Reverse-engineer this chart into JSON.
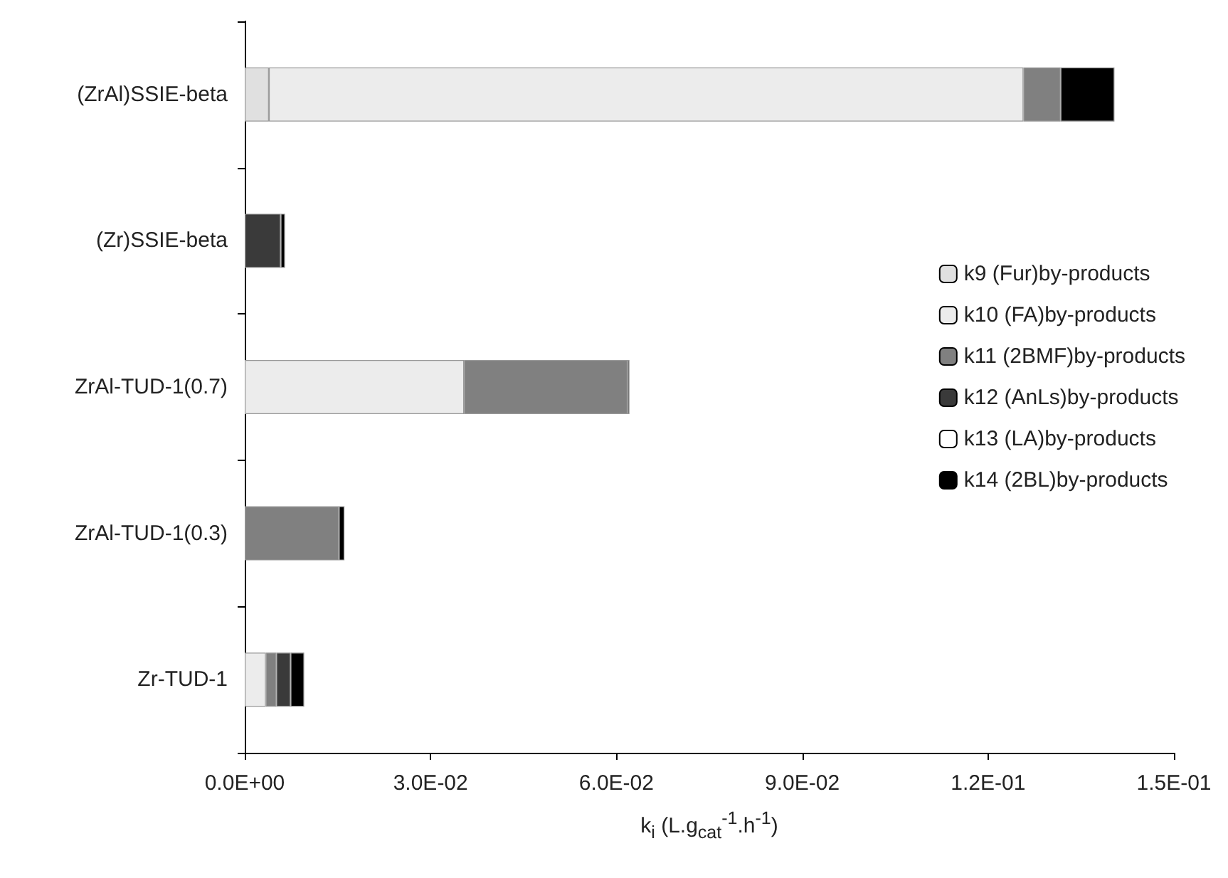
{
  "chart_data": {
    "type": "bar",
    "orientation": "horizontal",
    "stacked": true,
    "xlabel": "k$_{i}$  (L.g$_{cat}$$^{-1}$.h$^{-1}$)",
    "categories": [
      "(ZrAl)SSIE-beta",
      "(Zr)SSIE-beta",
      "ZrAl-TUD-1(0.7)",
      "ZrAl-TUD-1(0.3)",
      "Zr-TUD-1"
    ],
    "series": [
      {
        "name": "k9 (Fur)by-products",
        "color": "#e0e0e0",
        "values": [
          0.0039,
          null,
          null,
          null,
          null
        ]
      },
      {
        "name": "k10 (FA)by-products",
        "color": "#ececec",
        "values": [
          0.1218,
          null,
          0.0354,
          null,
          0.0034
        ]
      },
      {
        "name": "k11 (2BMF)by-products",
        "color": "#808080",
        "values": [
          0.006,
          null,
          0.0264,
          0.0152,
          0.0017
        ]
      },
      {
        "name": "k12 (AnLs)by-products",
        "color": "#3a3a3a",
        "values": [
          null,
          0.0058,
          null,
          null,
          0.0023
        ]
      },
      {
        "name": "k13 (LA)by-products",
        "color": "#ffffff",
        "values": [
          null,
          null,
          null,
          null,
          null
        ]
      },
      {
        "name": "k14 (2BL)by-products",
        "color": "#000000",
        "values": [
          0.0087,
          0.0007,
          0.0003,
          0.0009,
          0.0022
        ]
      }
    ],
    "xlim": [
      0,
      0.15
    ],
    "xticks": [
      {
        "value": 0,
        "label": "0.0E+00"
      },
      {
        "value": 0.03,
        "label": "3.0E-02"
      },
      {
        "value": 0.06,
        "label": "6.0E-02"
      },
      {
        "value": 0.09,
        "label": "9.0E-02"
      },
      {
        "value": 0.12,
        "label": "1.2E-01"
      },
      {
        "value": 0.15,
        "label": "1.5E-01"
      }
    ],
    "grid": false,
    "legend": "right"
  }
}
